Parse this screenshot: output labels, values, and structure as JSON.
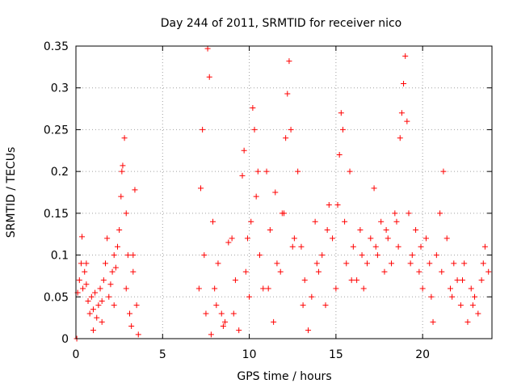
{
  "chart_data": {
    "type": "scatter",
    "title": "Day 244 of 2011, SRMTID for receiver nico",
    "xlabel": "GPS time / hours",
    "ylabel": "SRMTID / TECUs",
    "xlim": [
      0,
      24
    ],
    "ylim": [
      0,
      0.35
    ],
    "grid": true,
    "marker": "+",
    "xticks": [
      0,
      5,
      10,
      15,
      20
    ],
    "yticks": [
      0,
      0.05,
      0.1,
      0.15,
      0.2,
      0.25,
      0.3,
      0.35
    ],
    "xtick_labels": [
      "0",
      "5",
      "10",
      "15",
      "20"
    ],
    "ytick_labels": [
      "0",
      "0.05",
      "0.1",
      "0.15",
      "0.2",
      "0.25",
      "0.3",
      "0.35"
    ],
    "colors": {
      "points": "#ff0000",
      "grid": "#a0a0a0",
      "axes": "#000000",
      "background": "#ffffff"
    },
    "series": [
      {
        "name": "SRMTID",
        "points": [
          [
            0.05,
            0.0
          ],
          [
            0.1,
            0.055
          ],
          [
            0.2,
            0.07
          ],
          [
            0.3,
            0.09
          ],
          [
            0.35,
            0.122
          ],
          [
            0.4,
            0.06
          ],
          [
            0.5,
            0.08
          ],
          [
            0.6,
            0.065
          ],
          [
            0.7,
            0.045
          ],
          [
            0.8,
            0.03
          ],
          [
            0.9,
            0.05
          ],
          [
            1.0,
            0.035
          ],
          [
            1.1,
            0.055
          ],
          [
            1.2,
            0.025
          ],
          [
            1.3,
            0.04
          ],
          [
            1.4,
            0.06
          ],
          [
            1.5,
            0.045
          ],
          [
            1.6,
            0.07
          ],
          [
            1.7,
            0.09
          ],
          [
            1.8,
            0.12
          ],
          [
            1.9,
            0.05
          ],
          [
            2.0,
            0.065
          ],
          [
            2.1,
            0.08
          ],
          [
            2.2,
            0.1
          ],
          [
            2.3,
            0.085
          ],
          [
            2.4,
            0.11
          ],
          [
            2.5,
            0.13
          ],
          [
            2.6,
            0.17
          ],
          [
            2.65,
            0.2
          ],
          [
            2.7,
            0.207
          ],
          [
            2.8,
            0.24
          ],
          [
            2.9,
            0.15
          ],
          [
            3.0,
            0.1
          ],
          [
            3.1,
            0.03
          ],
          [
            3.2,
            0.015
          ],
          [
            3.3,
            0.08
          ],
          [
            3.4,
            0.178
          ],
          [
            3.5,
            0.04
          ],
          [
            3.6,
            0.005
          ],
          [
            0.6,
            0.09
          ],
          [
            1.0,
            0.01
          ],
          [
            1.5,
            0.02
          ],
          [
            2.2,
            0.04
          ],
          [
            2.9,
            0.06
          ],
          [
            3.3,
            0.1
          ],
          [
            7.1,
            0.06
          ],
          [
            7.2,
            0.18
          ],
          [
            7.3,
            0.25
          ],
          [
            7.4,
            0.1
          ],
          [
            7.5,
            0.03
          ],
          [
            7.6,
            0.347
          ],
          [
            7.7,
            0.313
          ],
          [
            7.8,
            0.005
          ],
          [
            7.9,
            0.14
          ],
          [
            8.0,
            0.06
          ],
          [
            8.2,
            0.09
          ],
          [
            8.4,
            0.03
          ],
          [
            8.6,
            0.02
          ],
          [
            8.8,
            0.115
          ],
          [
            9.0,
            0.12
          ],
          [
            9.2,
            0.07
          ],
          [
            9.4,
            0.01
          ],
          [
            9.6,
            0.195
          ],
          [
            9.7,
            0.225
          ],
          [
            9.8,
            0.08
          ],
          [
            10.0,
            0.05
          ],
          [
            10.1,
            0.14
          ],
          [
            10.2,
            0.276
          ],
          [
            10.3,
            0.25
          ],
          [
            10.4,
            0.17
          ],
          [
            10.6,
            0.1
          ],
          [
            10.8,
            0.06
          ],
          [
            11.0,
            0.2
          ],
          [
            11.2,
            0.13
          ],
          [
            11.4,
            0.02
          ],
          [
            11.5,
            0.175
          ],
          [
            11.6,
            0.09
          ],
          [
            11.8,
            0.08
          ],
          [
            12.0,
            0.15
          ],
          [
            12.1,
            0.24
          ],
          [
            12.2,
            0.293
          ],
          [
            12.3,
            0.332
          ],
          [
            12.4,
            0.25
          ],
          [
            12.6,
            0.12
          ],
          [
            12.8,
            0.2
          ],
          [
            13.0,
            0.11
          ],
          [
            13.2,
            0.07
          ],
          [
            13.4,
            0.01
          ],
          [
            13.6,
            0.05
          ],
          [
            13.8,
            0.14
          ],
          [
            14.0,
            0.08
          ],
          [
            14.2,
            0.1
          ],
          [
            14.4,
            0.04
          ],
          [
            14.6,
            0.16
          ],
          [
            14.8,
            0.12
          ],
          [
            15.0,
            0.06
          ],
          [
            15.2,
            0.22
          ],
          [
            15.3,
            0.27
          ],
          [
            15.4,
            0.25
          ],
          [
            15.5,
            0.14
          ],
          [
            15.6,
            0.09
          ],
          [
            15.8,
            0.2
          ],
          [
            16.0,
            0.11
          ],
          [
            16.2,
            0.07
          ],
          [
            16.4,
            0.13
          ],
          [
            16.6,
            0.06
          ],
          [
            16.8,
            0.09
          ],
          [
            17.0,
            0.12
          ],
          [
            17.2,
            0.18
          ],
          [
            17.4,
            0.1
          ],
          [
            17.6,
            0.14
          ],
          [
            17.8,
            0.08
          ],
          [
            18.0,
            0.12
          ],
          [
            18.2,
            0.09
          ],
          [
            18.4,
            0.15
          ],
          [
            18.6,
            0.11
          ],
          [
            18.7,
            0.24
          ],
          [
            18.8,
            0.27
          ],
          [
            18.9,
            0.305
          ],
          [
            19.0,
            0.338
          ],
          [
            19.1,
            0.26
          ],
          [
            19.2,
            0.15
          ],
          [
            19.4,
            0.1
          ],
          [
            19.6,
            0.13
          ],
          [
            19.8,
            0.08
          ],
          [
            20.0,
            0.06
          ],
          [
            20.2,
            0.12
          ],
          [
            20.4,
            0.09
          ],
          [
            20.6,
            0.02
          ],
          [
            20.8,
            0.1
          ],
          [
            21.0,
            0.15
          ],
          [
            21.2,
            0.2
          ],
          [
            21.4,
            0.12
          ],
          [
            21.6,
            0.06
          ],
          [
            21.8,
            0.09
          ],
          [
            22.0,
            0.07
          ],
          [
            22.2,
            0.04
          ],
          [
            22.4,
            0.09
          ],
          [
            22.6,
            0.02
          ],
          [
            22.8,
            0.06
          ],
          [
            23.0,
            0.05
          ],
          [
            23.2,
            0.03
          ],
          [
            23.4,
            0.07
          ],
          [
            23.6,
            0.11
          ],
          [
            23.8,
            0.08
          ],
          [
            8.1,
            0.04
          ],
          [
            8.5,
            0.015
          ],
          [
            9.1,
            0.03
          ],
          [
            9.9,
            0.12
          ],
          [
            10.5,
            0.2
          ],
          [
            11.1,
            0.06
          ],
          [
            11.9,
            0.15
          ],
          [
            12.5,
            0.11
          ],
          [
            13.1,
            0.04
          ],
          [
            13.9,
            0.09
          ],
          [
            14.5,
            0.13
          ],
          [
            15.1,
            0.16
          ],
          [
            15.9,
            0.07
          ],
          [
            16.5,
            0.1
          ],
          [
            17.3,
            0.11
          ],
          [
            17.9,
            0.13
          ],
          [
            18.5,
            0.14
          ],
          [
            19.3,
            0.09
          ],
          [
            19.9,
            0.11
          ],
          [
            20.5,
            0.05
          ],
          [
            21.1,
            0.08
          ],
          [
            21.7,
            0.05
          ],
          [
            22.3,
            0.07
          ],
          [
            22.9,
            0.04
          ],
          [
            23.5,
            0.09
          ]
        ]
      }
    ]
  }
}
